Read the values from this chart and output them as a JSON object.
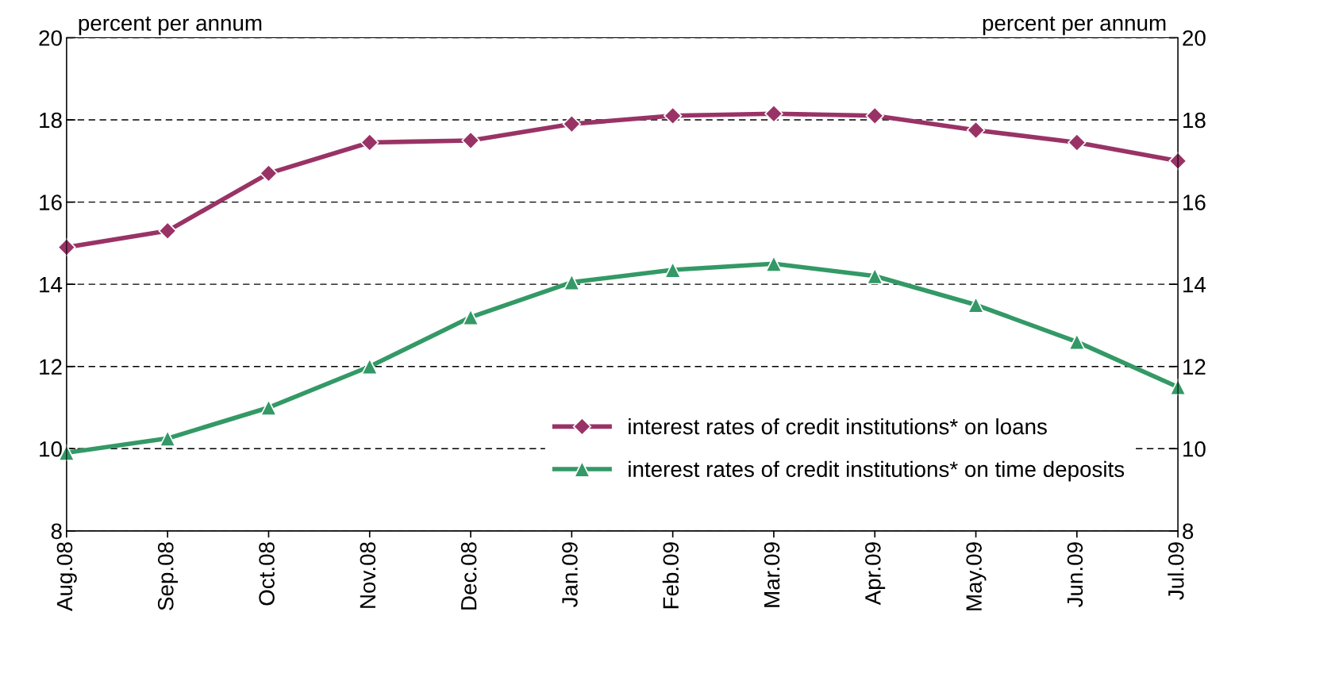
{
  "chart_data": {
    "type": "line",
    "ylabel": "percent per annum",
    "y2label": "percent per annum",
    "categories": [
      "Aug.08",
      "Sep.08",
      "Oct.08",
      "Nov.08",
      "Dec.08",
      "Jan.09",
      "Feb.09",
      "Mar.09",
      "Apr.09",
      "May.09",
      "Jun.09",
      "Jul.09"
    ],
    "series": [
      {
        "name": "interest rates of credit institutions* on loans",
        "color": "#993366",
        "marker": "diamond",
        "values": [
          14.9,
          15.3,
          16.7,
          17.45,
          17.5,
          17.9,
          18.1,
          18.15,
          18.1,
          17.75,
          17.45,
          17.0
        ]
      },
      {
        "name": "interest rates of credit institutions* on time deposits",
        "color": "#339966",
        "marker": "triangle",
        "values": [
          9.9,
          10.25,
          11.0,
          12.0,
          13.2,
          14.05,
          14.35,
          14.5,
          14.2,
          13.5,
          12.6,
          11.5
        ]
      }
    ],
    "ylim": [
      8,
      20
    ],
    "yticks": [
      8,
      10,
      12,
      14,
      16,
      18,
      20
    ],
    "y2lim": [
      8,
      20
    ],
    "y2ticks": [
      8,
      10,
      12,
      14,
      16,
      18,
      20
    ],
    "grid": "y",
    "legend": "bottom right",
    "line_style": "solid"
  }
}
